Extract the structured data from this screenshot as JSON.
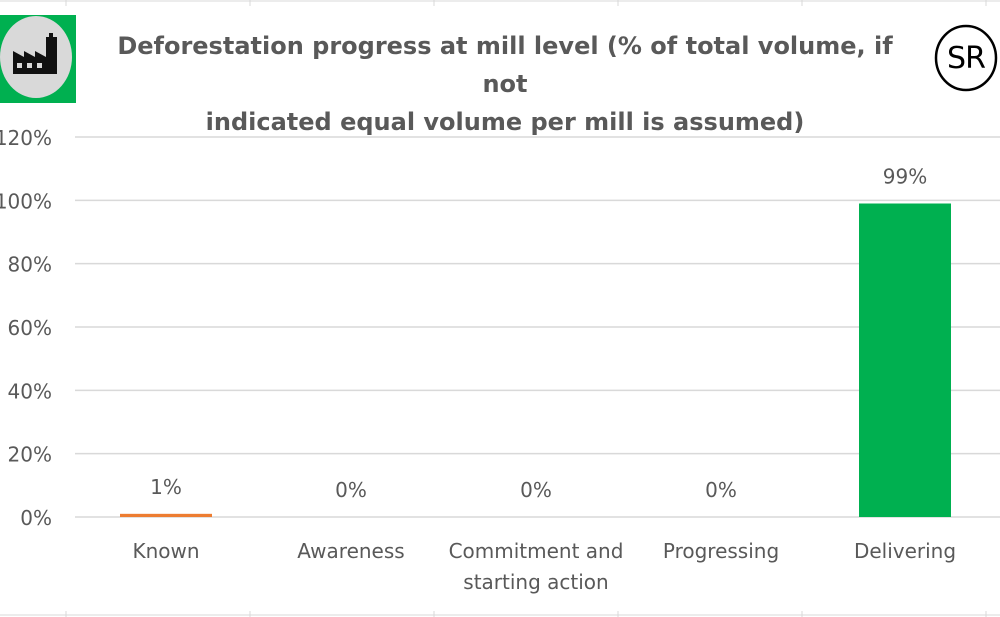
{
  "header": {
    "title_line1": "Deforestation progress at mill level (% of total volume, if not",
    "title_line2": "indicated equal volume per mill is assumed)",
    "factory_icon": "factory-icon",
    "badge_text": "SR"
  },
  "colors": {
    "known": "#ed7d31",
    "delivering": "#00b050",
    "gridline": "#d9d9d9",
    "text": "#595959",
    "logo_bg": "#00b050",
    "logo_circle": "#d9d9d9"
  },
  "chart_data": {
    "type": "bar",
    "title": "Deforestation progress at mill level (% of total volume, if not indicated equal volume per mill is assumed)",
    "categories": [
      [
        "Known"
      ],
      [
        "Awareness"
      ],
      [
        "Commitment and",
        "starting action"
      ],
      [
        "Progressing"
      ],
      [
        "Delivering"
      ]
    ],
    "values": [
      1,
      0,
      0,
      0,
      99
    ],
    "data_labels": [
      "1%",
      "0%",
      "0%",
      "0%",
      "99%"
    ],
    "bar_colors": [
      "#ed7d31",
      "#4472c4",
      "#4472c4",
      "#4472c4",
      "#00b050"
    ],
    "yticks": [
      "0%",
      "20%",
      "40%",
      "60%",
      "80%",
      "100%",
      "120%"
    ],
    "ytick_values": [
      0,
      20,
      40,
      60,
      80,
      100,
      120
    ],
    "ylim": [
      0,
      120
    ],
    "grid": true,
    "legend": "none"
  }
}
